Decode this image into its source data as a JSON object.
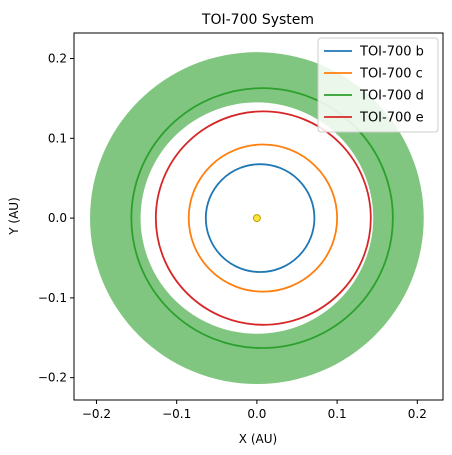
{
  "chart_data": {
    "type": "line",
    "title": "TOI-700 System",
    "xlabel": "X (AU)",
    "ylabel": "Y (AU)",
    "xlim": [
      -0.228,
      0.232
    ],
    "ylim": [
      -0.228,
      0.232
    ],
    "x_ticks": [
      -0.2,
      -0.1,
      0.0,
      0.1,
      0.2
    ],
    "x_tick_labels": [
      "−0.2",
      "−0.1",
      "0.0",
      "0.1",
      "0.2"
    ],
    "y_ticks": [
      -0.2,
      -0.1,
      0.0,
      0.1,
      0.2
    ],
    "y_tick_labels": [
      "−0.2",
      "−0.1",
      "0.0",
      "0.1",
      "0.2"
    ],
    "grid": false,
    "legend_position": "top-right",
    "star": {
      "x": 0.0,
      "y": 0.0,
      "color": "#ffe23a",
      "edge": "#b8a100"
    },
    "habitable_zone": {
      "inner": 0.145,
      "outer": 0.208,
      "color": "#2ca02c",
      "opacity": 0.6
    },
    "series": [
      {
        "name": "TOI-700 b",
        "color": "#1f77b4",
        "semi_major_axis": 0.0677,
        "eccentricity": 0.06,
        "center_x": 0.004
      },
      {
        "name": "TOI-700 c",
        "color": "#ff7f0e",
        "semi_major_axis": 0.0925,
        "eccentricity": 0.08,
        "center_x": 0.0075
      },
      {
        "name": "TOI-700 d",
        "color": "#2ca02c",
        "semi_major_axis": 0.163,
        "eccentricity": 0.04,
        "center_x": 0.0065
      },
      {
        "name": "TOI-700 e",
        "color": "#d62728",
        "semi_major_axis": 0.134,
        "eccentricity": 0.06,
        "center_x": 0.008
      }
    ]
  }
}
